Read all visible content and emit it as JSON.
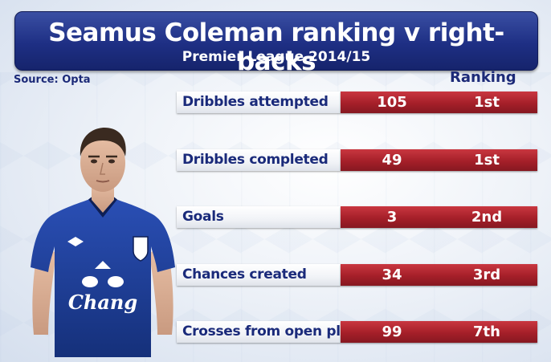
{
  "header": {
    "title": "Seamus Coleman ranking v right-backs",
    "subtitle": "Premier League 2014/15"
  },
  "source": "Source: Opta",
  "ranking_header": "Ranking",
  "player": {
    "shirt_sponsor": "Chang",
    "shirt_color": "#1d3d9c"
  },
  "colors": {
    "header_blue": "#1e2f84",
    "value_red": "#a51f29",
    "label_text": "#1a2a7a"
  },
  "stats": [
    {
      "label": "Dribbles attempted",
      "value": "105",
      "rank": "1st"
    },
    {
      "label": "Dribbles completed",
      "value": "49",
      "rank": "1st"
    },
    {
      "label": "Goals",
      "value": "3",
      "rank": "2nd"
    },
    {
      "label": "Chances created",
      "value": "34",
      "rank": "3rd"
    },
    {
      "label": "Crosses from open play",
      "value": "99",
      "rank": "7th"
    }
  ]
}
